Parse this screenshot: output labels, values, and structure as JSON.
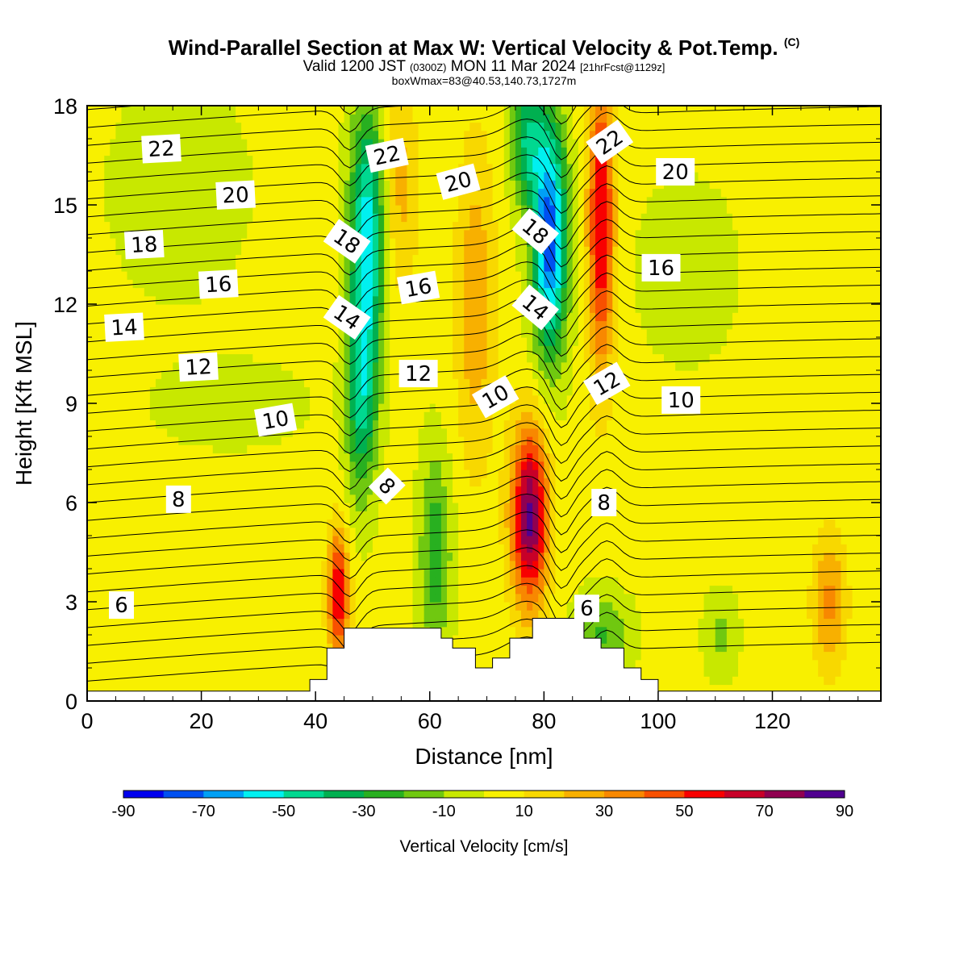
{
  "title": {
    "main": "Wind-Parallel Section at Max W: Vertical Velocity & Pot.Temp.",
    "copyright": "(C)",
    "valid_prefix": "Valid 1200 JST",
    "valid_utc": "(0300Z)",
    "valid_date": "MON 11 Mar 2024",
    "forecast": "[21hrFcst@1129z]",
    "boxwmax": "boxWmax=83@40.53,140.73,1727m"
  },
  "chart_data": {
    "type": "heatmap",
    "xlabel": "Distance [nm]",
    "ylabel": "Height [Kft MSL]",
    "xlim": [
      0,
      139
    ],
    "ylim": [
      0,
      18
    ],
    "x_ticks": [
      0,
      20,
      40,
      60,
      80,
      100,
      120
    ],
    "y_ticks": [
      0,
      3,
      6,
      9,
      12,
      15,
      18
    ],
    "colorbar": {
      "label": "Vertical Velocity [cm/s]",
      "tick_labels": [
        "-90",
        "-70",
        "-50",
        "-30",
        "-10",
        "10",
        "30",
        "50",
        "70",
        "90"
      ],
      "levels": [
        -90,
        -80,
        -70,
        -60,
        -50,
        -40,
        -30,
        -20,
        -10,
        0,
        10,
        20,
        30,
        40,
        50,
        60,
        70,
        80,
        90
      ],
      "colors": [
        "#0000ee",
        "#0050f0",
        "#00a0f5",
        "#00f0f0",
        "#00d890",
        "#00b050",
        "#28b020",
        "#70c810",
        "#c8e800",
        "#f8f000",
        "#f8d800",
        "#f8b000",
        "#f88800",
        "#f85000",
        "#f80000",
        "#c80028",
        "#900050",
        "#500090"
      ]
    },
    "features": [
      {
        "w": -60,
        "x": 49,
        "y": 14,
        "sx": 3,
        "sy": 4
      },
      {
        "w": -40,
        "x": 48,
        "y": 9,
        "sx": 2.6,
        "sy": 3
      },
      {
        "w": -80,
        "x": 81,
        "y": 14,
        "sx": 3,
        "sy": 3.5
      },
      {
        "w": -40,
        "x": 77,
        "y": 17,
        "sx": 3,
        "sy": 2
      },
      {
        "w": -30,
        "x": 61,
        "y": 4.5,
        "sx": 2.8,
        "sy": 3
      },
      {
        "w": -25,
        "x": 90,
        "y": 2,
        "sx": 5,
        "sy": 1.2
      },
      {
        "w": -15,
        "x": 111,
        "y": 2,
        "sx": 3,
        "sy": 1.2
      },
      {
        "w": 80,
        "x": 77.5,
        "y": 5.6,
        "sx": 3.2,
        "sy": 2.7
      },
      {
        "w": 60,
        "x": 90,
        "y": 14.5,
        "sx": 2.3,
        "sy": 4.5
      },
      {
        "w": 60,
        "x": 44,
        "y": 3.2,
        "sx": 1.8,
        "sy": 2
      },
      {
        "w": 30,
        "x": 130,
        "y": 3,
        "sx": 3,
        "sy": 2
      },
      {
        "w": 25,
        "x": 68,
        "y": 12,
        "sx": 3.5,
        "sy": 5
      },
      {
        "w": 20,
        "x": 55,
        "y": 15.5,
        "sx": 3,
        "sy": 3.5
      },
      {
        "w": -12,
        "x": 16,
        "y": 15.5,
        "sx": 11,
        "sy": 3
      },
      {
        "w": -12,
        "x": 25,
        "y": 9,
        "sx": 12,
        "sy": 1.2
      },
      {
        "w": -12,
        "x": 105,
        "y": 13,
        "sx": 8,
        "sy": 2.5
      }
    ],
    "terrain": [
      [
        0,
        0.3
      ],
      [
        39,
        0.3
      ],
      [
        39,
        0.65
      ],
      [
        42,
        0.65
      ],
      [
        42,
        1.6
      ],
      [
        45,
        1.6
      ],
      [
        45,
        2.2
      ],
      [
        62,
        2.2
      ],
      [
        62,
        1.9
      ],
      [
        64,
        1.9
      ],
      [
        64,
        1.6
      ],
      [
        68,
        1.6
      ],
      [
        68,
        1.0
      ],
      [
        71,
        1.0
      ],
      [
        71,
        1.3
      ],
      [
        74,
        1.3
      ],
      [
        74,
        1.9
      ],
      [
        78,
        1.9
      ],
      [
        78,
        2.5
      ],
      [
        87,
        2.5
      ],
      [
        87,
        1.9
      ],
      [
        90,
        1.9
      ],
      [
        90,
        1.6
      ],
      [
        94,
        1.6
      ],
      [
        94,
        1.0
      ],
      [
        97,
        1.0
      ],
      [
        97,
        0.65
      ],
      [
        100,
        0.65
      ],
      [
        100,
        0.3
      ],
      [
        139,
        0.3
      ]
    ],
    "theta_labels": [
      {
        "text": "22",
        "x": 13,
        "y": 16.7,
        "angle": -3
      },
      {
        "text": "20",
        "x": 26,
        "y": 15.3,
        "angle": -3
      },
      {
        "text": "18",
        "x": 10,
        "y": 13.8,
        "angle": -3
      },
      {
        "text": "16",
        "x": 23,
        "y": 12.6,
        "angle": -3
      },
      {
        "text": "14",
        "x": 6.5,
        "y": 11.3,
        "angle": -3
      },
      {
        "text": "12",
        "x": 19.5,
        "y": 10.1,
        "angle": -3
      },
      {
        "text": "10",
        "x": 33,
        "y": 8.5,
        "angle": -10
      },
      {
        "text": "8",
        "x": 16,
        "y": 6.1,
        "angle": 0
      },
      {
        "text": "6",
        "x": 6,
        "y": 2.9,
        "angle": 0
      },
      {
        "text": "22",
        "x": 52.5,
        "y": 16.5,
        "angle": -12
      },
      {
        "text": "20",
        "x": 65,
        "y": 15.7,
        "angle": -15
      },
      {
        "text": "18",
        "x": 45.5,
        "y": 13.9,
        "angle": 35
      },
      {
        "text": "16",
        "x": 58,
        "y": 12.5,
        "angle": -10
      },
      {
        "text": "14",
        "x": 45.5,
        "y": 11.6,
        "angle": 35
      },
      {
        "text": "12",
        "x": 58,
        "y": 9.9,
        "angle": 0
      },
      {
        "text": "10",
        "x": 71.5,
        "y": 9.2,
        "angle": -30
      },
      {
        "text": "8",
        "x": 52.5,
        "y": 6.5,
        "angle": 45
      },
      {
        "text": "18",
        "x": 78.5,
        "y": 14.2,
        "angle": 40
      },
      {
        "text": "14",
        "x": 78.5,
        "y": 11.9,
        "angle": 40
      },
      {
        "text": "22",
        "x": 91.5,
        "y": 16.9,
        "angle": -35
      },
      {
        "text": "12",
        "x": 91,
        "y": 9.6,
        "angle": -30
      },
      {
        "text": "6",
        "x": 87.5,
        "y": 2.8,
        "angle": 0
      },
      {
        "text": "8",
        "x": 90.5,
        "y": 6.0,
        "angle": 0
      },
      {
        "text": "20",
        "x": 103,
        "y": 16.0,
        "angle": 0
      },
      {
        "text": "16",
        "x": 100.5,
        "y": 13.1,
        "angle": 0
      },
      {
        "text": "10",
        "x": 104,
        "y": 9.1,
        "angle": 0
      }
    ]
  }
}
